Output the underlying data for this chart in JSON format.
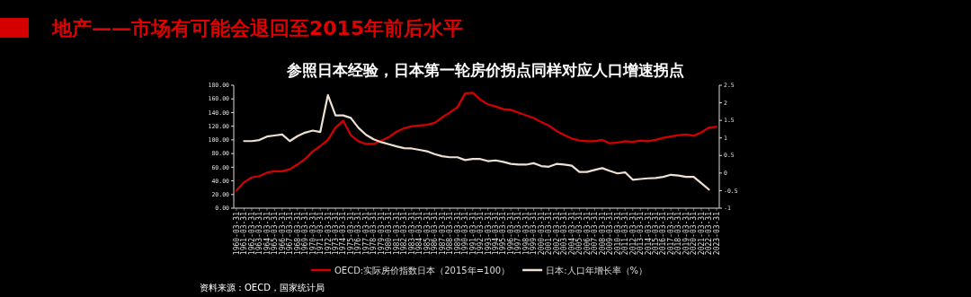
{
  "chart_data": {
    "type": "line",
    "title": "地产——市场有可能会退回至2015年前后水平",
    "subtitle": "参照日本经验，日本第一轮房价拐点同样对应人口增速拐点",
    "annotations": [
      "资料来源：OECD，国家统计局"
    ],
    "categories": [
      "1960-03-31",
      "1961-03-31",
      "1962-03-31",
      "1963-03-31",
      "1964-03-31",
      "1965-03-31",
      "1966-03-31",
      "1967-03-31",
      "1968-03-31",
      "1969-03-31",
      "1970-03-31",
      "1971-03-31",
      "1972-03-31",
      "1973-03-31",
      "1974-03-31",
      "1975-03-31",
      "1976-03-31",
      "1977-03-31",
      "1978-03-31",
      "1979-03-31",
      "1980-03-31",
      "1981-03-31",
      "1982-03-31",
      "1983-03-31",
      "1984-03-31",
      "1985-03-31",
      "1986-03-31",
      "1987-03-31",
      "1988-03-31",
      "1989-03-31",
      "1990-03-31",
      "1991-03-31",
      "1992-03-31",
      "1993-03-31",
      "1994-03-31",
      "1995-03-31",
      "1996-03-31",
      "1997-03-31",
      "1998-03-31",
      "1999-03-31",
      "2000-03-31",
      "2001-03-31",
      "2002-03-31",
      "2003-03-31",
      "2004-03-31",
      "2005-03-31",
      "2006-03-31",
      "2007-03-31",
      "2008-03-31",
      "2009-03-31",
      "2010-03-31",
      "2011-03-31",
      "2012-03-31",
      "2013-03-31",
      "2014-03-31",
      "2015-03-31",
      "2016-03-31",
      "2017-03-31",
      "2018-03-31",
      "2019-03-31",
      "2020-03-31",
      "2021-03-31",
      "2022-03-31",
      "2023-03-31"
    ],
    "series": [
      {
        "name": "OECD:实际房价指数日本（2015年=100）",
        "color": "#d40000",
        "values": [
          26,
          38,
          45,
          47,
          52,
          54,
          54,
          57,
          64,
          72,
          83,
          91,
          100,
          118,
          128,
          107,
          98,
          94,
          94,
          99,
          104,
          112,
          117,
          120,
          121,
          122,
          125,
          133,
          140,
          148,
          168,
          169,
          159,
          152,
          149,
          145,
          144,
          140,
          136,
          132,
          126,
          121,
          113,
          107,
          102,
          99,
          98,
          98,
          100,
          95,
          96,
          98,
          97,
          99,
          98,
          100,
          103,
          105,
          107,
          108,
          106,
          111,
          118,
          119
        ]
      },
      {
        "name": "日本:人口年增长率（%）",
        "color": "#eee0d2",
        "axis": "y2",
        "values": [
          null,
          0.91,
          0.91,
          0.94,
          1.04,
          1.07,
          1.1,
          0.91,
          1.05,
          1.15,
          1.21,
          1.17,
          2.22,
          1.64,
          1.64,
          1.57,
          1.29,
          1.09,
          0.96,
          0.88,
          0.82,
          0.76,
          0.71,
          0.7,
          0.66,
          0.62,
          0.54,
          0.48,
          0.45,
          0.45,
          0.37,
          0.4,
          0.4,
          0.34,
          0.36,
          0.32,
          0.26,
          0.24,
          0.24,
          0.28,
          0.2,
          0.18,
          0.26,
          0.24,
          0.21,
          0.03,
          0.03,
          0.09,
          0.14,
          0.06,
          -0.01,
          0.02,
          -0.19,
          -0.17,
          -0.15,
          -0.14,
          -0.11,
          -0.05,
          -0.07,
          -0.11,
          -0.11,
          -0.29,
          -0.47,
          null
        ]
      }
    ],
    "ylim": [
      0,
      180
    ],
    "yticks": [
      {
        "value": 0,
        "label": "0.00"
      },
      {
        "value": 20,
        "label": "20.00"
      },
      {
        "value": 40,
        "label": "40.00"
      },
      {
        "value": 60,
        "label": "60.00"
      },
      {
        "value": 80,
        "label": "80.00"
      },
      {
        "value": 100,
        "label": "100.00"
      },
      {
        "value": 120,
        "label": "120.00"
      },
      {
        "value": 140,
        "label": "140.00"
      },
      {
        "value": 160,
        "label": "160.00"
      },
      {
        "value": 180,
        "label": "180.00"
      }
    ],
    "y2lim": [
      -1,
      2.5
    ],
    "y2ticks": [
      -1,
      -0.5,
      0,
      0.5,
      1,
      1.5,
      2,
      2.5
    ],
    "legend": "bottom",
    "grid": false,
    "marker": "none",
    "line_style": "solid"
  }
}
